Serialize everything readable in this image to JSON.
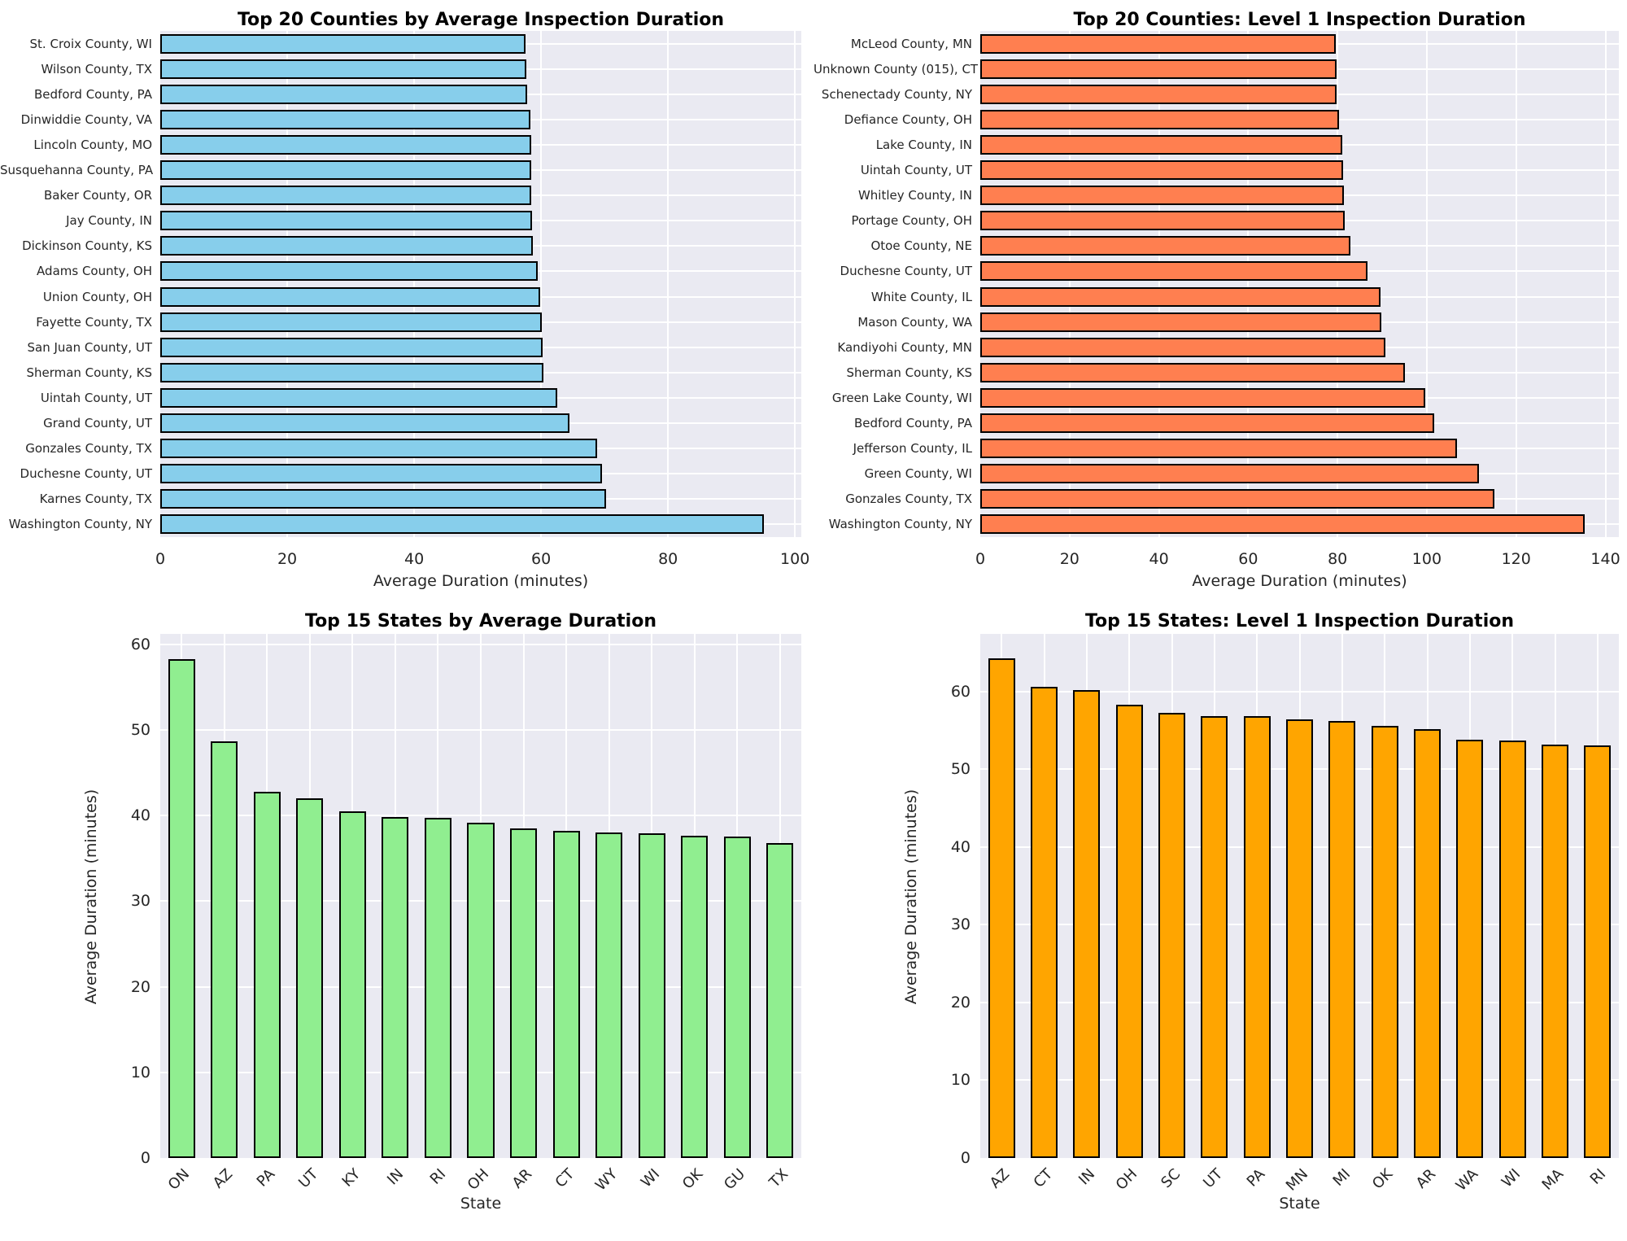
{
  "style": {
    "plot_background": "#eaeaf2",
    "grid_color": "#ffffff",
    "bar_edge_color": "#000000",
    "text_color": "#262626"
  },
  "charts": [
    {
      "id": "counties-average",
      "type": "barh",
      "title": "Top 20 Counties by Average Inspection Duration",
      "xlabel": "Average Duration (minutes)",
      "bar_color": "#87ceeb",
      "xlim": [
        0,
        101
      ],
      "xticks": [
        0,
        20,
        40,
        60,
        80,
        100
      ],
      "grid": true,
      "categories": [
        "St. Croix County, WI",
        "Wilson County, TX",
        "Bedford County, PA",
        "Dinwiddie County, VA",
        "Lincoln County, MO",
        "Susquehanna County, PA",
        "Baker County, OR",
        "Jay County, IN",
        "Dickinson County, KS",
        "Adams County, OH",
        "Union County, OH",
        "Fayette County, TX",
        "San Juan County, UT",
        "Sherman County, KS",
        "Uintah County, UT",
        "Grand County, UT",
        "Gonzales County, TX",
        "Duchesne County, UT",
        "Karnes County, TX",
        "Washington County, NY"
      ],
      "values": [
        57.6,
        57.7,
        57.8,
        58.3,
        58.4,
        58.5,
        58.5,
        58.6,
        58.7,
        59.5,
        59.9,
        60.1,
        60.3,
        60.4,
        62.6,
        64.5,
        68.8,
        69.6,
        70.3,
        95.1
      ]
    },
    {
      "id": "counties-level1",
      "type": "barh",
      "title": "Top 20 Counties: Level 1 Inspection Duration",
      "xlabel": "Average Duration (minutes)",
      "bar_color": "#ff7f50",
      "xlim": [
        0,
        143
      ],
      "xticks": [
        0,
        20,
        40,
        60,
        80,
        100,
        120,
        140
      ],
      "grid": true,
      "categories": [
        "McLeod County, MN",
        "Unknown County (015), CT",
        "Schenectady County, NY",
        "Defiance County, OH",
        "Lake County, IN",
        "Uintah County, UT",
        "Whitley County, IN",
        "Portage County, OH",
        "Otoe County, NE",
        "Duchesne County, UT",
        "White County, IL",
        "Mason County, WA",
        "Kandiyohi County, MN",
        "Sherman County, KS",
        "Green Lake County, WI",
        "Bedford County, PA",
        "Jefferson County, IL",
        "Green County, WI",
        "Gonzales County, TX",
        "Washington County, NY"
      ],
      "values": [
        79.6,
        79.7,
        79.8,
        80.4,
        81.0,
        81.3,
        81.5,
        81.6,
        82.8,
        86.8,
        89.6,
        89.8,
        90.8,
        95.1,
        99.6,
        101.6,
        106.8,
        111.6,
        115.2,
        135.4
      ]
    },
    {
      "id": "states-average",
      "type": "bar",
      "title": "Top 15 States by Average Duration",
      "xlabel": "State",
      "ylabel": "Average Duration (minutes)",
      "bar_color": "#90ee90",
      "ylim": [
        0,
        61.2
      ],
      "yticks": [
        0,
        10,
        20,
        30,
        40,
        50,
        60
      ],
      "grid": true,
      "categories": [
        "ON",
        "AZ",
        "PA",
        "UT",
        "KY",
        "IN",
        "RI",
        "OH",
        "AR",
        "CT",
        "WY",
        "WI",
        "OK",
        "GU",
        "TX"
      ],
      "values": [
        58.3,
        48.7,
        42.8,
        42.0,
        40.5,
        39.8,
        39.7,
        39.2,
        38.5,
        38.2,
        38.0,
        37.9,
        37.6,
        37.5,
        36.8
      ]
    },
    {
      "id": "states-level1",
      "type": "bar",
      "title": "Top 15 States: Level 1 Inspection Duration",
      "xlabel": "State",
      "ylabel": "Average Duration (minutes)",
      "bar_color": "#ffa500",
      "ylim": [
        0,
        67.4
      ],
      "yticks": [
        0,
        10,
        20,
        30,
        40,
        50,
        60
      ],
      "grid": true,
      "categories": [
        "AZ",
        "CT",
        "IN",
        "OH",
        "SC",
        "UT",
        "PA",
        "MN",
        "MI",
        "OK",
        "AR",
        "WA",
        "WI",
        "MA",
        "RI"
      ],
      "values": [
        64.3,
        60.6,
        60.2,
        58.3,
        57.3,
        56.8,
        56.8,
        56.4,
        56.2,
        55.6,
        55.2,
        53.8,
        53.7,
        53.2,
        53.1
      ]
    }
  ]
}
